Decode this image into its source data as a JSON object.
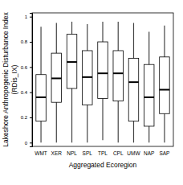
{
  "chart_data": {
    "type": "box",
    "x_label": "Aggregated Ecoregion",
    "y_label": [
      "Lakeshore Anthropogenic Disturbance Index",
      "(RDis_IX)"
    ],
    "categories": [
      "WMT",
      "XER",
      "NPL",
      "SPL",
      "TPL",
      "CPL",
      "UMW",
      "NAP",
      "SAP"
    ],
    "min": [
      0,
      0,
      0,
      0,
      0.02,
      0,
      0,
      0,
      0
    ],
    "q1": [
      0.17,
      0.32,
      0.43,
      0.3,
      0.35,
      0.33,
      0.17,
      0.13,
      0.23
    ],
    "median": [
      0.36,
      0.51,
      0.64,
      0.52,
      0.55,
      0.55,
      0.48,
      0.36,
      0.42
    ],
    "q3": [
      0.54,
      0.71,
      0.86,
      0.73,
      0.8,
      0.73,
      0.67,
      0.62,
      0.68
    ],
    "max": [
      0.92,
      0.95,
      0.96,
      0.94,
      0.96,
      0.96,
      0.95,
      0.88,
      0.93
    ],
    "color": "#ffffff",
    "ylim": [
      -0.03,
      1.03
    ],
    "yticks": [
      0,
      0.2,
      0.4,
      0.6,
      0.8,
      1
    ],
    "grid": false
  }
}
